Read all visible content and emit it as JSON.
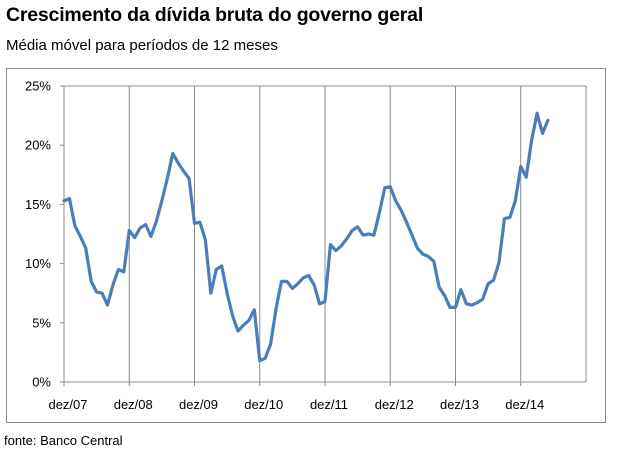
{
  "chart_data": {
    "type": "line",
    "title": "Crescimento da dívida bruta do governo geral",
    "subtitle": "Média móvel para períodos de 12 meses",
    "source": "fonte: Banco Central",
    "xlabel": "",
    "ylabel": "",
    "ylim": [
      0,
      25
    ],
    "yticks": [
      "0%",
      "5%",
      "10%",
      "15%",
      "20%",
      "25%"
    ],
    "xticks": [
      "dez/07",
      "dez/08",
      "dez/09",
      "dez/10",
      "dez/11",
      "dez/12",
      "dez/13",
      "dez/14"
    ],
    "grid": {
      "vertical": true,
      "horizontal": false
    },
    "legend": "none",
    "color": "#4a7ebb",
    "x_start": "dez/07",
    "series": [
      {
        "values": [
          15.3,
          15.5,
          13.2,
          12.3,
          11.3,
          8.5,
          7.6,
          7.5,
          6.5,
          8.2,
          9.5,
          9.3,
          12.8,
          12.2,
          13.0,
          13.3,
          12.3,
          13.6,
          15.3,
          17.2,
          19.3,
          18.5,
          17.8,
          17.2,
          13.4,
          13.5,
          12.0,
          7.5,
          9.5,
          9.8,
          7.5,
          5.6,
          4.3,
          4.8,
          5.2,
          6.1,
          1.8,
          2.0,
          3.2,
          6.2,
          8.5,
          8.5,
          7.9,
          8.3,
          8.8,
          9.0,
          8.2,
          6.6,
          6.8,
          11.6,
          11.1,
          11.5,
          12.1,
          12.8,
          13.1,
          12.4,
          12.5,
          12.4,
          14.3,
          16.4,
          16.5,
          15.3,
          14.5,
          13.5,
          12.4,
          11.3,
          10.8,
          10.6,
          10.2,
          8.0,
          7.3,
          6.3,
          6.3,
          7.8,
          6.6,
          6.5,
          6.7,
          7.0,
          8.3,
          8.6,
          10.1,
          13.8,
          13.9,
          15.3,
          18.2,
          17.3,
          20.4,
          22.7,
          21.0,
          22.1
        ]
      }
    ]
  }
}
